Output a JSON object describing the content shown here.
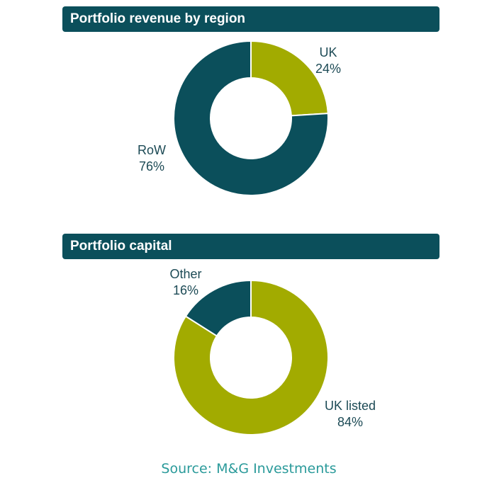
{
  "colors": {
    "dark": "#0b4f5b",
    "olive": "#a2ab00"
  },
  "chart_data": [
    {
      "type": "pie",
      "variant": "donut",
      "title": "Portfolio revenue by region",
      "slices": [
        {
          "label": "UK",
          "value": 24,
          "display": "24%",
          "color": "#a2ab00"
        },
        {
          "label": "RoW",
          "value": 76,
          "display": "76%",
          "color": "#0b4f5b"
        }
      ]
    },
    {
      "type": "pie",
      "variant": "donut",
      "title": "Portfolio capital",
      "slices": [
        {
          "label": "UK listed",
          "value": 84,
          "display": "84%",
          "color": "#a2ab00"
        },
        {
          "label": "Other",
          "value": 16,
          "display": "16%",
          "color": "#0b4f5b"
        }
      ]
    }
  ],
  "source": "Source: M&G Investments"
}
